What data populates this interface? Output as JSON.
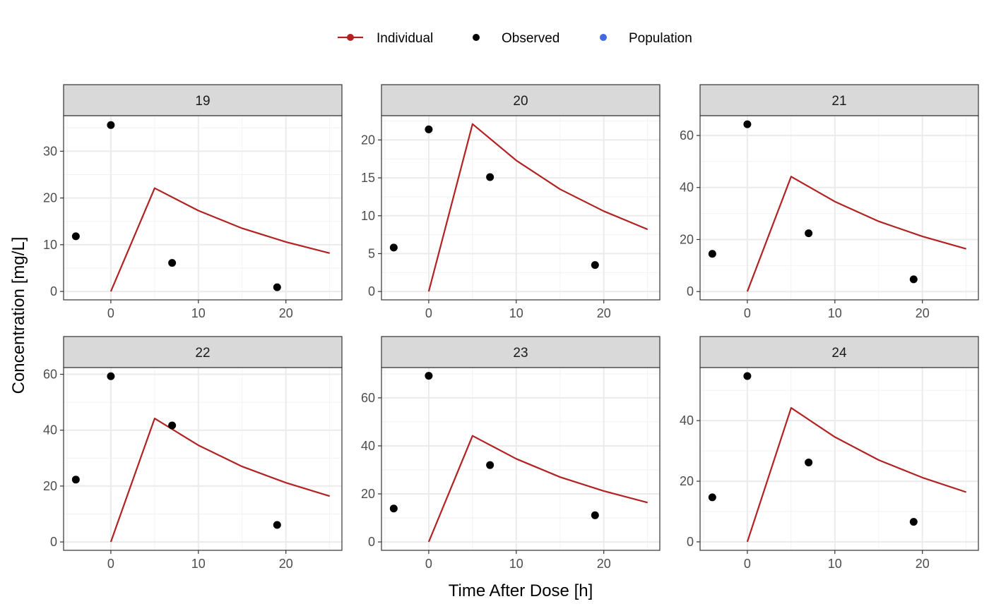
{
  "chart_data": {
    "type": "line",
    "xlabel": "Time After Dose [h]",
    "ylabel": "Concentration [mg/L]",
    "x_ticks": [
      0,
      10,
      20
    ],
    "xlim": [
      -5.4,
      26.4
    ],
    "legend": {
      "placement": "top",
      "entries": [
        {
          "label": "Individual",
          "color": "#b22222",
          "kind": "line-point"
        },
        {
          "label": "Observed",
          "color": "#000000",
          "kind": "point"
        },
        {
          "label": "Population",
          "color": "#4169e1",
          "kind": "point"
        }
      ]
    },
    "colors": {
      "individual": "#b22222",
      "observed": "#000000",
      "population": "#4169e1"
    },
    "panels": [
      {
        "label": "19",
        "ylim": [
          -1.8,
          37.6
        ],
        "y_ticks": [
          0,
          10,
          20,
          30
        ],
        "observed": [
          {
            "x": -4,
            "y": 11.8
          },
          {
            "x": 0,
            "y": 35.6
          },
          {
            "x": 7,
            "y": 6.1
          },
          {
            "x": 19,
            "y": 0.9
          }
        ],
        "individual": [
          {
            "x": 0,
            "y": 0
          },
          {
            "x": 5,
            "y": 22.1
          },
          {
            "x": 10,
            "y": 17.3
          },
          {
            "x": 15,
            "y": 13.5
          },
          {
            "x": 20,
            "y": 10.6
          },
          {
            "x": 25,
            "y": 8.2
          }
        ]
      },
      {
        "label": "20",
        "ylim": [
          -1.1,
          23.2
        ],
        "y_ticks": [
          0,
          5,
          10,
          15,
          20
        ],
        "observed": [
          {
            "x": -4,
            "y": 5.8
          },
          {
            "x": 0,
            "y": 21.4
          },
          {
            "x": 7,
            "y": 15.1
          },
          {
            "x": 19,
            "y": 3.5
          }
        ],
        "individual": [
          {
            "x": 0,
            "y": 0
          },
          {
            "x": 5,
            "y": 22.1
          },
          {
            "x": 10,
            "y": 17.3
          },
          {
            "x": 15,
            "y": 13.5
          },
          {
            "x": 20,
            "y": 10.6
          },
          {
            "x": 25,
            "y": 8.2
          }
        ]
      },
      {
        "label": "21",
        "ylim": [
          -3.2,
          67.6
        ],
        "y_ticks": [
          0,
          20,
          40,
          60
        ],
        "observed": [
          {
            "x": -4,
            "y": 14.5
          },
          {
            "x": 0,
            "y": 64.3
          },
          {
            "x": 7,
            "y": 22.4
          },
          {
            "x": 19,
            "y": 4.7
          }
        ],
        "individual": [
          {
            "x": 0,
            "y": 0
          },
          {
            "x": 5,
            "y": 44.2
          },
          {
            "x": 10,
            "y": 34.6
          },
          {
            "x": 15,
            "y": 27.0
          },
          {
            "x": 20,
            "y": 21.2
          },
          {
            "x": 25,
            "y": 16.4
          }
        ]
      },
      {
        "label": "22",
        "ylim": [
          -3.0,
          62.4
        ],
        "y_ticks": [
          0,
          20,
          40,
          60
        ],
        "observed": [
          {
            "x": -4,
            "y": 22.3
          },
          {
            "x": 0,
            "y": 59.3
          },
          {
            "x": 7,
            "y": 41.7
          },
          {
            "x": 19,
            "y": 6.1
          }
        ],
        "individual": [
          {
            "x": 0,
            "y": 0
          },
          {
            "x": 5,
            "y": 44.2
          },
          {
            "x": 10,
            "y": 34.6
          },
          {
            "x": 15,
            "y": 27.0
          },
          {
            "x": 20,
            "y": 21.2
          },
          {
            "x": 25,
            "y": 16.4
          }
        ]
      },
      {
        "label": "23",
        "ylim": [
          -3.5,
          72.6
        ],
        "y_ticks": [
          0,
          20,
          40,
          60
        ],
        "observed": [
          {
            "x": -4,
            "y": 13.9
          },
          {
            "x": 0,
            "y": 69.2
          },
          {
            "x": 7,
            "y": 32.0
          },
          {
            "x": 19,
            "y": 11.1
          }
        ],
        "individual": [
          {
            "x": 0,
            "y": 0
          },
          {
            "x": 5,
            "y": 44.2
          },
          {
            "x": 10,
            "y": 34.6
          },
          {
            "x": 15,
            "y": 27.0
          },
          {
            "x": 20,
            "y": 21.2
          },
          {
            "x": 25,
            "y": 16.4
          }
        ]
      },
      {
        "label": "24",
        "ylim": [
          -2.8,
          57.5
        ],
        "y_ticks": [
          0,
          20,
          40
        ],
        "observed": [
          {
            "x": -4,
            "y": 14.7
          },
          {
            "x": 0,
            "y": 54.7
          },
          {
            "x": 7,
            "y": 26.2
          },
          {
            "x": 19,
            "y": 6.6
          }
        ],
        "individual": [
          {
            "x": 0,
            "y": 0
          },
          {
            "x": 5,
            "y": 44.2
          },
          {
            "x": 10,
            "y": 34.6
          },
          {
            "x": 15,
            "y": 27.0
          },
          {
            "x": 20,
            "y": 21.2
          },
          {
            "x": 25,
            "y": 16.4
          }
        ]
      }
    ]
  }
}
